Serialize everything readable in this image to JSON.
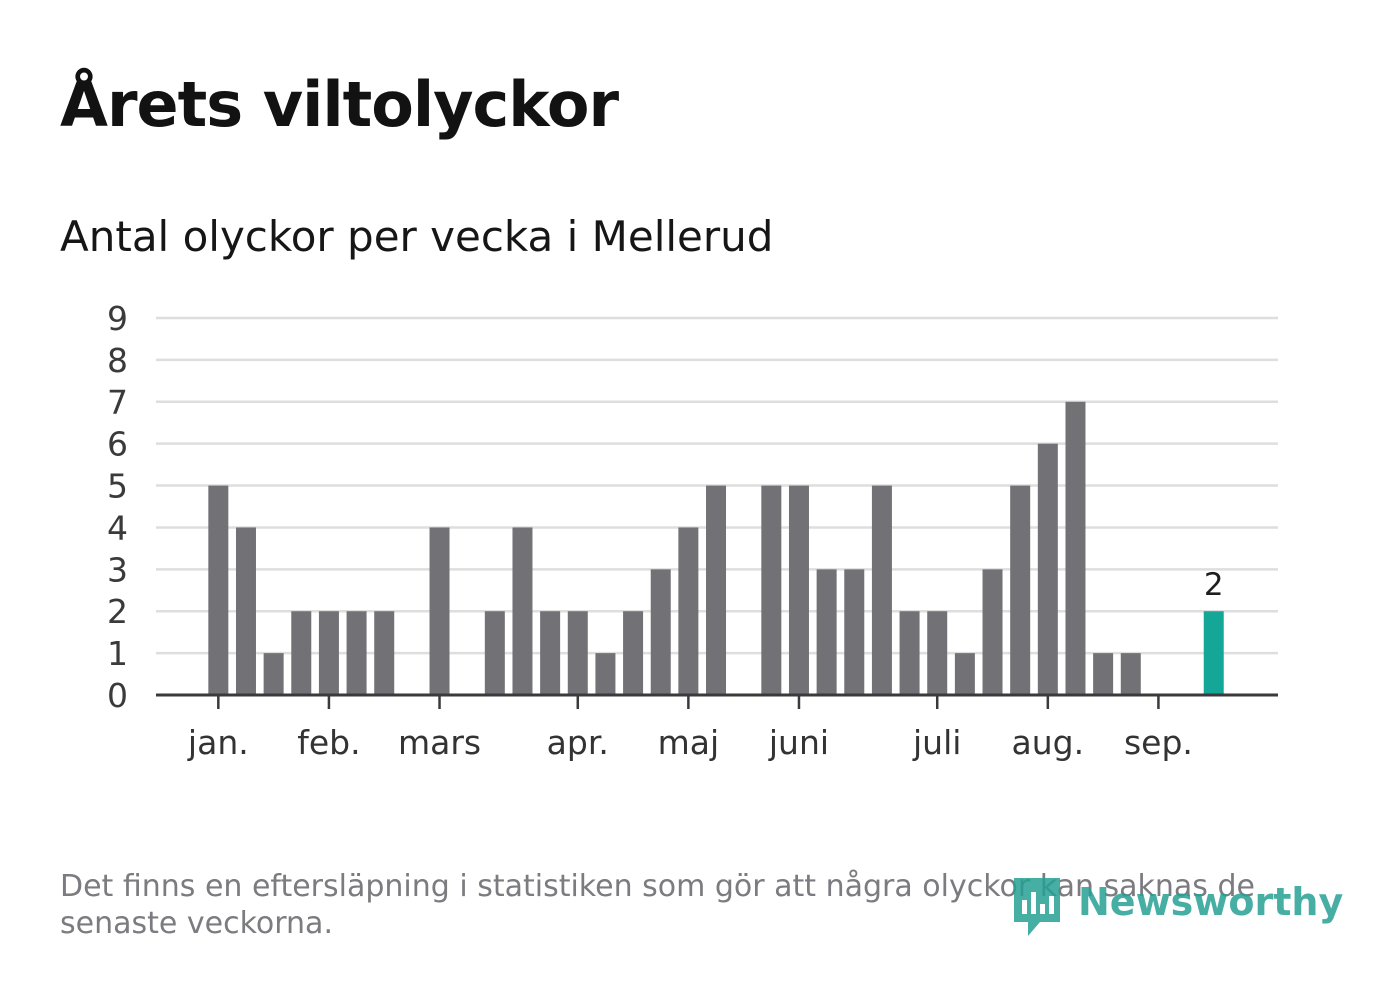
{
  "title": "Årets viltolyckor",
  "subtitle": "Antal olyckor per vecka i Mellerud",
  "footnote": "Det finns en eftersläpning i statistiken som gör att några olyckor kan saknas de senaste veckorna.",
  "brand": {
    "name": "Newsworthy",
    "icon": "newsworthy-logo-icon"
  },
  "colors": {
    "bar": "#727176",
    "highlight": "#14a697",
    "grid": "#dedede",
    "axis": "#3a3a3a"
  },
  "chart_data": {
    "type": "bar",
    "week_slots": 37,
    "values": [
      5,
      4,
      1,
      2,
      2,
      2,
      2,
      0,
      4,
      0,
      2,
      4,
      2,
      2,
      1,
      2,
      3,
      4,
      5,
      0,
      5,
      5,
      3,
      3,
      5,
      2,
      2,
      1,
      3,
      5,
      6,
      7,
      1,
      1,
      0,
      0,
      2
    ],
    "highlight_index": 36,
    "highlight_label": "2",
    "ylim": [
      0,
      9
    ],
    "yticks": [
      "0",
      "1",
      "2",
      "3",
      "4",
      "5",
      "6",
      "7",
      "8",
      "9"
    ],
    "month_labels": [
      "jan.",
      "feb.",
      "mars",
      "apr.",
      "maj",
      "juni",
      "juli",
      "aug.",
      "sep."
    ],
    "month_positions": [
      0.5,
      4.5,
      8.5,
      13.5,
      17.5,
      21.5,
      26.5,
      30.5,
      34.5
    ],
    "grid": true,
    "xlabel": "",
    "ylabel": ""
  }
}
